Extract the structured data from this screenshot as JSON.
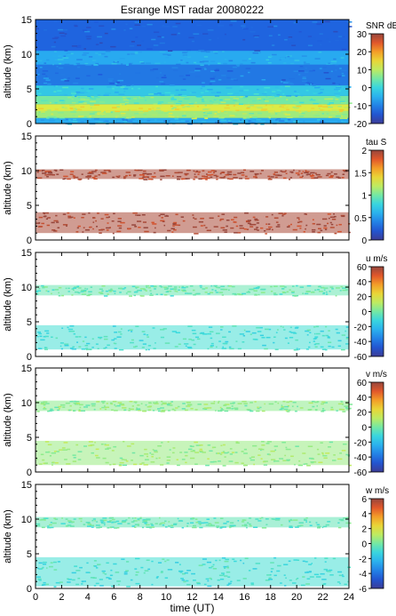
{
  "chart_data": [
    {
      "type": "heatmap",
      "title": "Esrange MST radar 20080222",
      "xlabel": "",
      "ylabel": "altitude (km)",
      "xlim": [
        0,
        24
      ],
      "ylim": [
        0,
        15
      ],
      "yticks": [
        0,
        5,
        10,
        15
      ],
      "colorbar": {
        "label": "SNR dB",
        "range": [
          -20,
          30
        ],
        "ticks": [
          -20,
          -10,
          0,
          10,
          20,
          30
        ]
      },
      "fill_altitude_km": 15,
      "layers": [
        {
          "alt_km": [
            0,
            0.8
          ],
          "value": -6
        },
        {
          "alt_km": [
            0.8,
            1.8
          ],
          "value": 8
        },
        {
          "alt_km": [
            1.8,
            2.8
          ],
          "value": 12
        },
        {
          "alt_km": [
            2.8,
            4.0
          ],
          "value": 5
        },
        {
          "alt_km": [
            4.0,
            5.5
          ],
          "value": -2
        },
        {
          "alt_km": [
            5.5,
            8.5
          ],
          "value": -11
        },
        {
          "alt_km": [
            8.5,
            10.5
          ],
          "value": -6
        },
        {
          "alt_km": [
            10.5,
            15.0
          ],
          "value": -13
        }
      ]
    },
    {
      "type": "heatmap",
      "ylabel": "altitude (km)",
      "xlim": [
        0,
        24
      ],
      "ylim": [
        0,
        15
      ],
      "yticks": [
        0,
        5,
        10,
        15
      ],
      "colorbar": {
        "label": "tau S",
        "range": [
          0,
          2
        ],
        "ticks": [
          0,
          0.5,
          1,
          1.5,
          2
        ]
      },
      "layers": [
        {
          "alt_km": [
            1.0,
            4.0
          ],
          "value": 1.95
        },
        {
          "alt_km": [
            8.8,
            10.2
          ],
          "value": 1.95
        }
      ]
    },
    {
      "type": "heatmap",
      "ylabel": "altitude (km)",
      "xlim": [
        0,
        24
      ],
      "ylim": [
        0,
        15
      ],
      "yticks": [
        0,
        5,
        10,
        15
      ],
      "colorbar": {
        "label": "u m/s",
        "range": [
          -60,
          60
        ],
        "ticks": [
          -60,
          -40,
          -20,
          0,
          20,
          40,
          60
        ]
      },
      "layers": [
        {
          "alt_km": [
            1.0,
            4.5
          ],
          "value": -8
        },
        {
          "alt_km": [
            8.8,
            10.3
          ],
          "value": -2
        }
      ]
    },
    {
      "type": "heatmap",
      "ylabel": "altitude (km)",
      "xlim": [
        0,
        24
      ],
      "ylim": [
        0,
        15
      ],
      "yticks": [
        0,
        5,
        10,
        15
      ],
      "colorbar": {
        "label": "v m/s",
        "range": [
          -60,
          60
        ],
        "ticks": [
          -60,
          -40,
          -20,
          0,
          20,
          40,
          60
        ]
      },
      "layers": [
        {
          "alt_km": [
            1.0,
            4.5
          ],
          "value": 6
        },
        {
          "alt_km": [
            8.8,
            10.3
          ],
          "value": 4
        }
      ]
    },
    {
      "type": "heatmap",
      "xlabel": "time (UT)",
      "ylabel": "altitude (km)",
      "xlim": [
        0,
        24
      ],
      "ylim": [
        0,
        15
      ],
      "yticks": [
        0,
        5,
        10,
        15
      ],
      "xticks": [
        0,
        2,
        4,
        6,
        8,
        10,
        12,
        14,
        16,
        18,
        20,
        22,
        24
      ],
      "colorbar": {
        "label": "w m/s",
        "range": [
          -6,
          6
        ],
        "ticks": [
          -6,
          -4,
          -2,
          0,
          2,
          4,
          6
        ]
      },
      "layers": [
        {
          "alt_km": [
            0.3,
            4.5
          ],
          "value": -0.8
        },
        {
          "alt_km": [
            8.8,
            10.3
          ],
          "value": -0.3
        }
      ]
    }
  ]
}
